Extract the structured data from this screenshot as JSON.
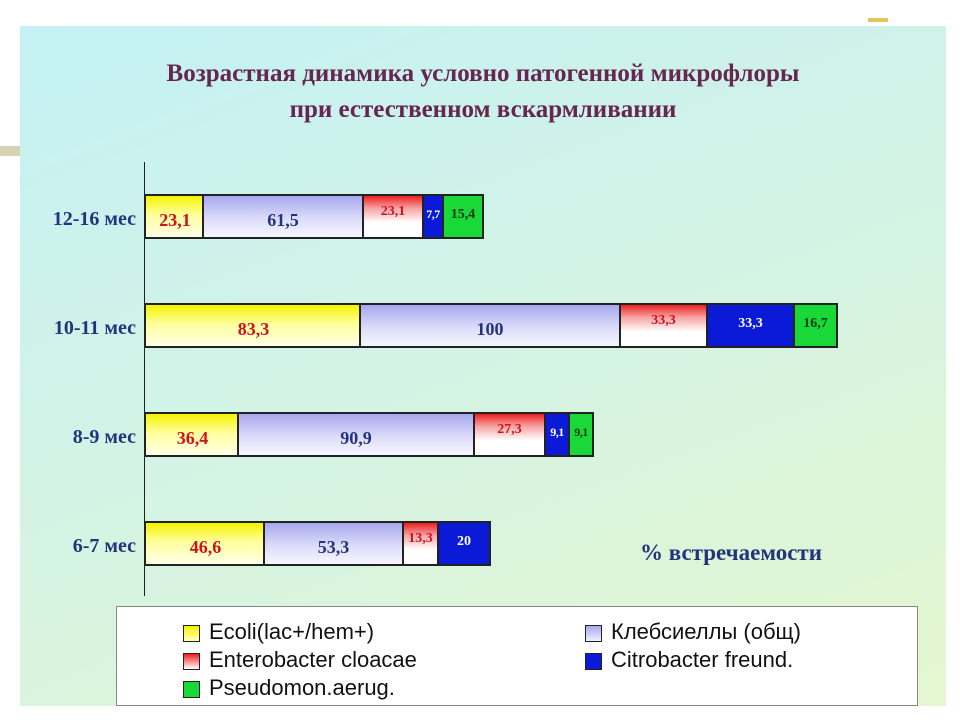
{
  "chart_data": {
    "type": "bar",
    "orientation": "horizontal",
    "stacked": true,
    "title": "Возрастная динамика условно патогенной микрофлоры при естественном вскармливании",
    "title_lines": [
      "Возрастная динамика условно патогенной микрофлоры",
      "при естественном вскармливании"
    ],
    "unit_label": "% встречаемости",
    "categories": [
      "12-16 мес",
      "10-11 мес",
      "8-9 мес",
      "6-7 мес"
    ],
    "series": [
      {
        "name": "Ecoli(lac+/hem+)",
        "key": "ecoli",
        "values": [
          23.1,
          83.3,
          36.4,
          46.6
        ],
        "labels": [
          "23,1",
          "83,3",
          "36,4",
          "46,6"
        ],
        "color": "#f4f300",
        "label_color": "#d0121c"
      },
      {
        "name": "Клебсиеллы (общ)",
        "key": "kleb",
        "values": [
          61.5,
          100,
          90.9,
          53.3
        ],
        "labels": [
          "61,5",
          "100",
          "90,9",
          "53,3"
        ],
        "color": "#a7a7ee",
        "label_color": "#22347a"
      },
      {
        "name": "Enterobacter cloacae",
        "key": "entero",
        "values": [
          23.1,
          33.3,
          27.3,
          13.3
        ],
        "labels": [
          "23,1",
          "33,3",
          "27,3",
          "13,3"
        ],
        "color": "#ee1e1e",
        "label_color": "#d0121c"
      },
      {
        "name": "Citrobacter freund.",
        "key": "citro",
        "values": [
          7.7,
          33.3,
          9.1,
          20
        ],
        "labels": [
          "7,7",
          "33,3",
          "9,1",
          "20"
        ],
        "color": "#0a1ad6",
        "label_color": "#ffffff"
      },
      {
        "name": "Pseudomon.aerug.",
        "key": "pseudo",
        "values": [
          15.4,
          16.7,
          9.1,
          0
        ],
        "labels": [
          "15,4",
          "16,7",
          "9,1",
          ""
        ],
        "color": "#19d837",
        "label_color": "#0b3a18"
      }
    ],
    "grid": false,
    "legend_position": "bottom"
  },
  "colors": {
    "title": "#66264f",
    "category_label": "#22347a",
    "panel_gradient": [
      "#c4f1f4",
      "#e4f7cf"
    ]
  }
}
